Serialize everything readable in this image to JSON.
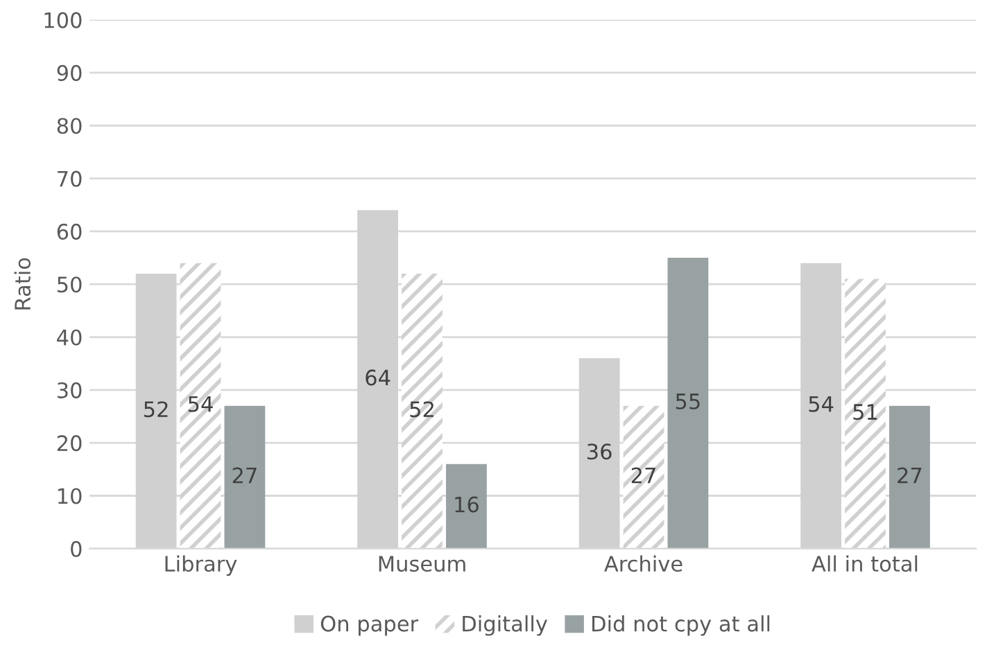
{
  "chart_data": {
    "type": "bar",
    "ylabel": "Ratio",
    "categories": [
      "Library",
      "Museum",
      "Archive",
      "All in total"
    ],
    "series": [
      {
        "name": "On paper",
        "color": "#d0d0d0",
        "values": [
          52,
          64,
          36,
          54
        ]
      },
      {
        "name": "Digitally",
        "color": "#d0d0d0",
        "values": [
          54,
          52,
          27,
          51
        ]
      },
      {
        "name": "Did not cpy at all",
        "color": "#98a2a2",
        "values": [
          27,
          16,
          55,
          27
        ]
      }
    ],
    "ylim": [
      0,
      100
    ],
    "yticks": [
      0,
      10,
      20,
      30,
      40,
      50,
      60,
      70,
      80,
      90,
      100
    ],
    "grid": "y",
    "legend": "bottom",
    "data_labels": true
  }
}
